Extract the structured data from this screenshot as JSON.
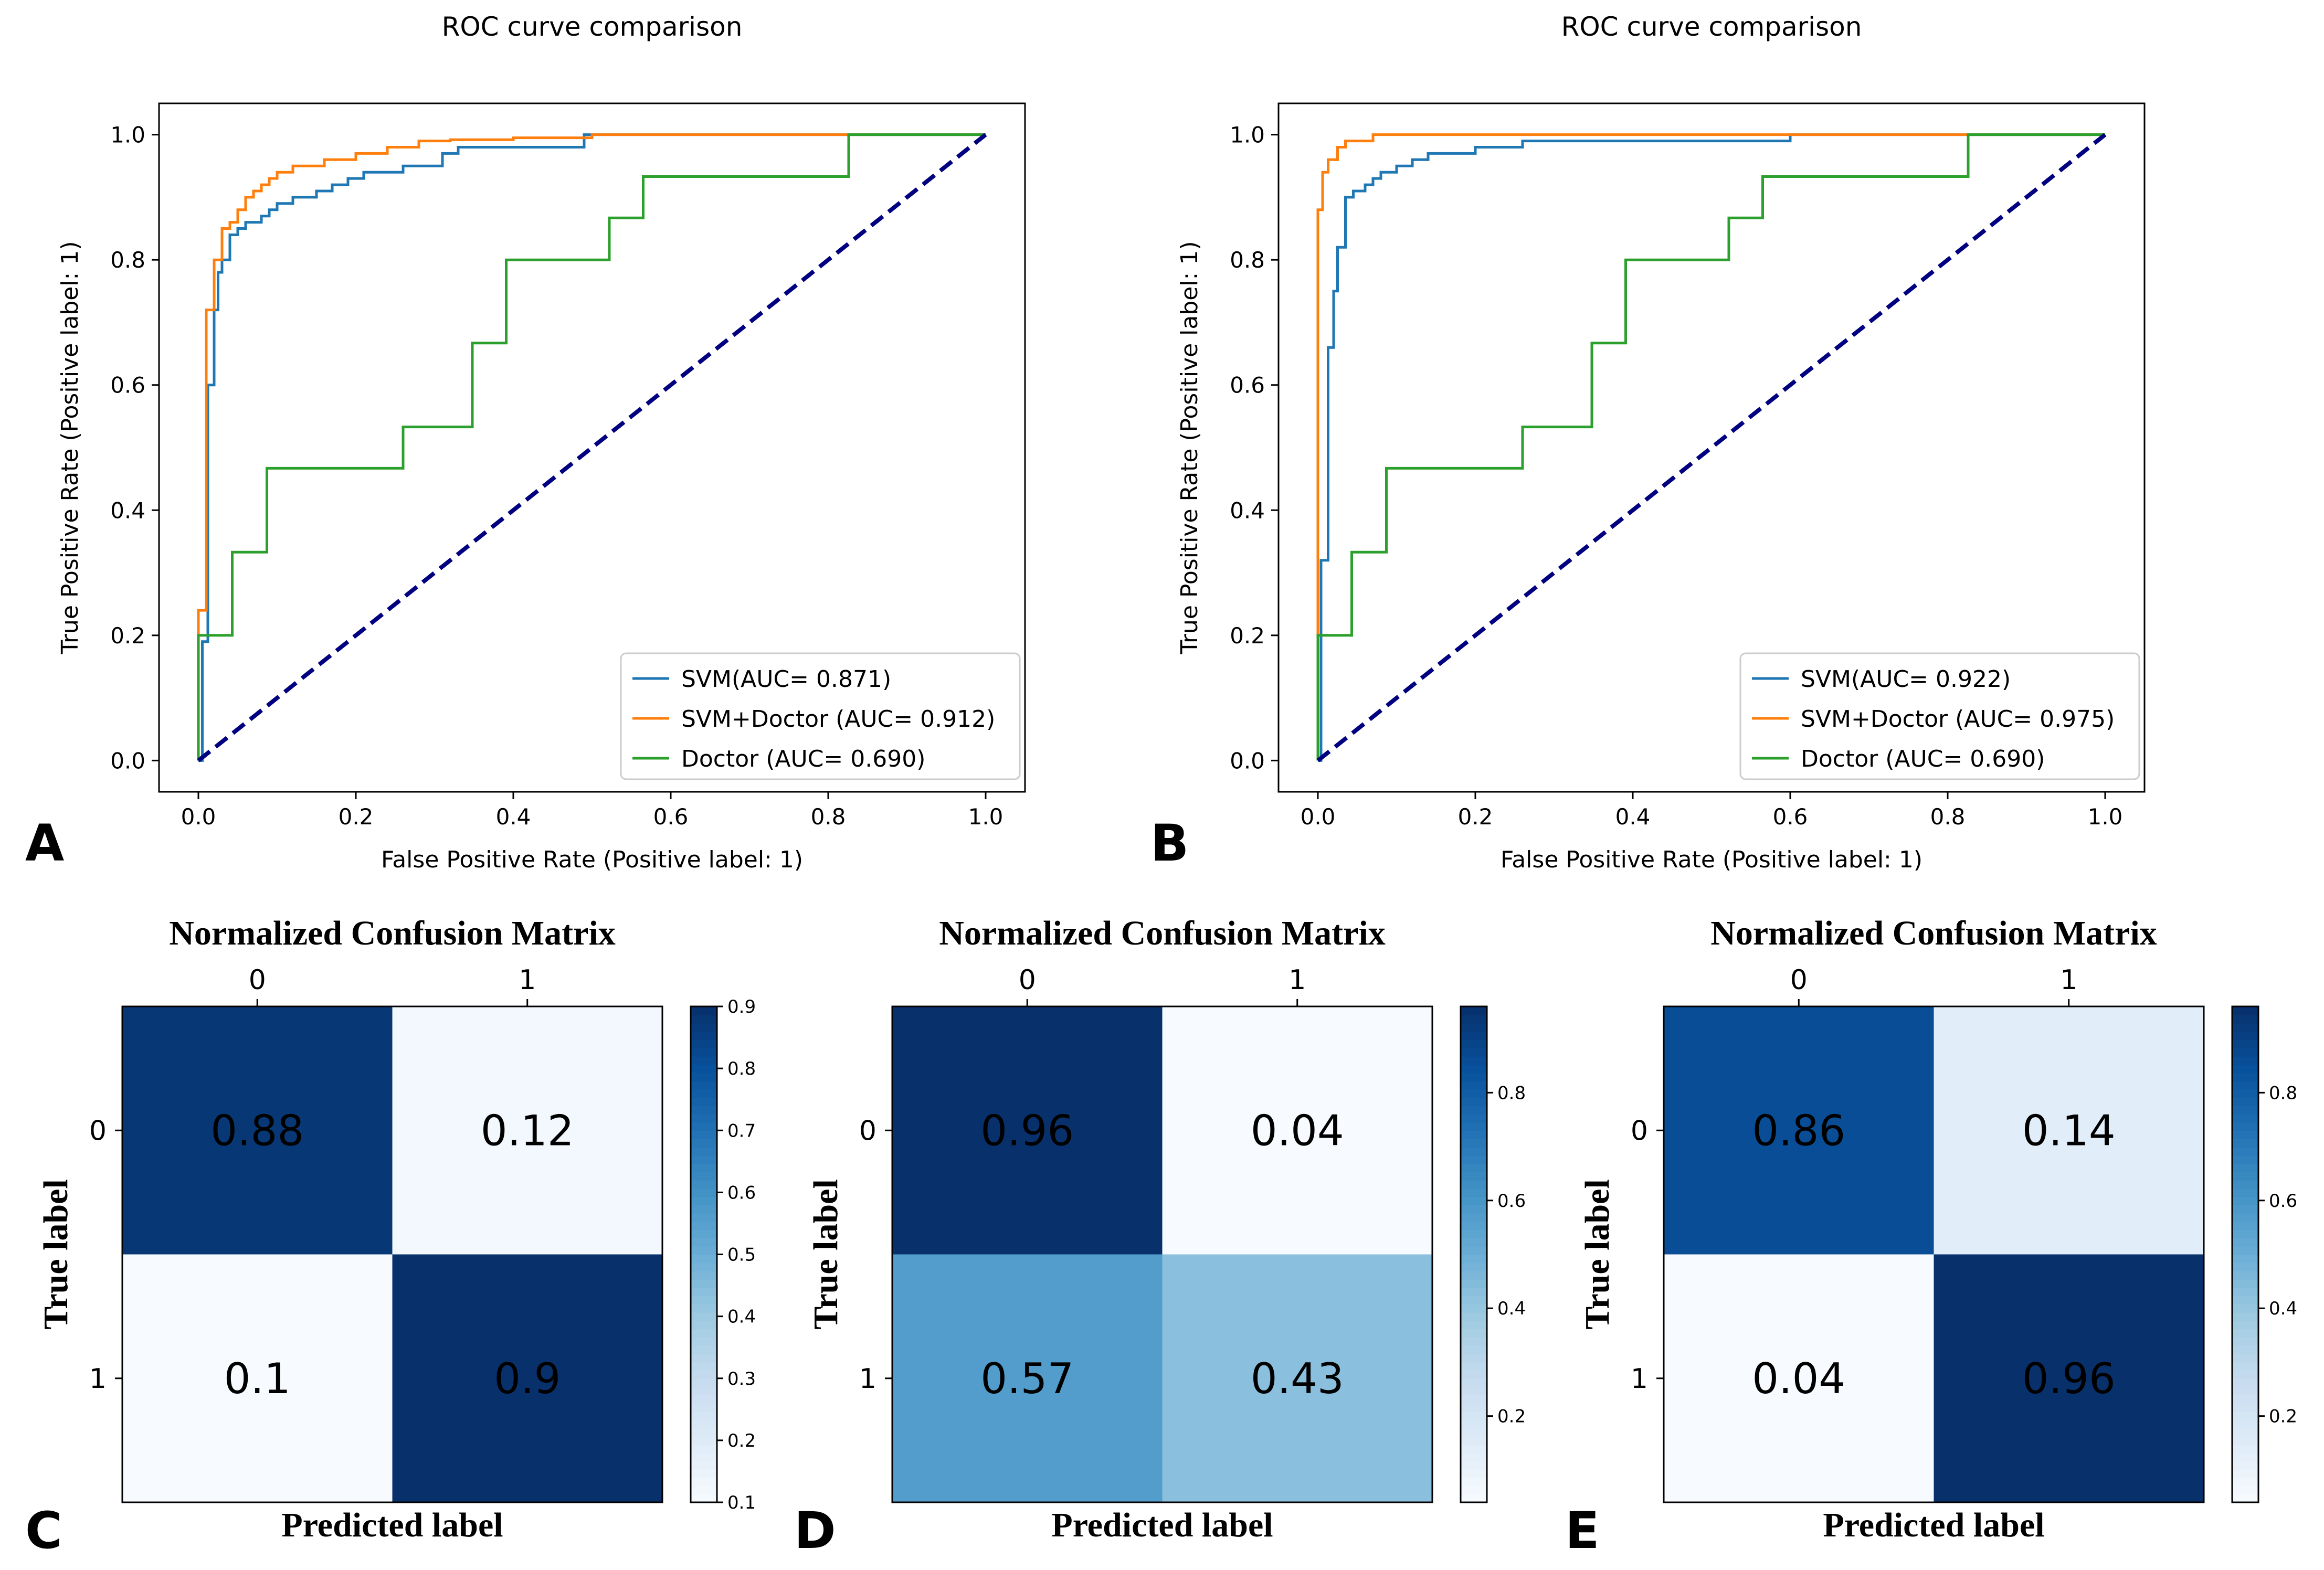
{
  "panel_letters": [
    "A",
    "B",
    "C",
    "D",
    "E"
  ],
  "chart_data": [
    {
      "type": "line",
      "panel": "A",
      "title": "ROC curve comparison",
      "xlabel": "False Positive Rate (Positive label: 1)",
      "ylabel": "True Positive Rate (Positive label: 1)",
      "xlim": [
        -0.05,
        1.05
      ],
      "ylim": [
        -0.05,
        1.05
      ],
      "xticks": [
        "0.0",
        "0.2",
        "0.4",
        "0.6",
        "0.8",
        "1.0"
      ],
      "yticks": [
        "0.0",
        "0.2",
        "0.4",
        "0.6",
        "0.8",
        "1.0"
      ],
      "legend_position": "lower-right",
      "series": [
        {
          "name": "SVM(AUC= 0.871)",
          "color": "#1f77b4",
          "x": [
            0,
            0.005,
            0.005,
            0.012,
            0.012,
            0.02,
            0.02,
            0.025,
            0.025,
            0.03,
            0.03,
            0.04,
            0.04,
            0.05,
            0.05,
            0.06,
            0.06,
            0.08,
            0.08,
            0.09,
            0.09,
            0.1,
            0.1,
            0.12,
            0.12,
            0.15,
            0.15,
            0.17,
            0.17,
            0.19,
            0.19,
            0.21,
            0.21,
            0.26,
            0.26,
            0.31,
            0.31,
            0.33,
            0.33,
            0.49,
            0.49,
            1.0
          ],
          "y": [
            0,
            0,
            0.19,
            0.19,
            0.6,
            0.6,
            0.72,
            0.72,
            0.78,
            0.78,
            0.8,
            0.8,
            0.84,
            0.84,
            0.85,
            0.85,
            0.86,
            0.86,
            0.87,
            0.87,
            0.88,
            0.88,
            0.89,
            0.89,
            0.9,
            0.9,
            0.91,
            0.91,
            0.92,
            0.92,
            0.93,
            0.93,
            0.94,
            0.94,
            0.95,
            0.95,
            0.97,
            0.97,
            0.98,
            0.98,
            1.0,
            1.0
          ]
        },
        {
          "name": "SVM+Doctor (AUC= 0.912)",
          "color": "#ff7f0e",
          "x": [
            0,
            0,
            0.01,
            0.01,
            0.02,
            0.02,
            0.03,
            0.03,
            0.04,
            0.04,
            0.05,
            0.05,
            0.06,
            0.06,
            0.07,
            0.07,
            0.08,
            0.08,
            0.09,
            0.09,
            0.1,
            0.1,
            0.12,
            0.12,
            0.16,
            0.16,
            0.2,
            0.2,
            0.24,
            0.24,
            0.28,
            0.28,
            0.32,
            0.32,
            0.4,
            0.4,
            0.5,
            0.5,
            1.0
          ],
          "y": [
            0,
            0.24,
            0.24,
            0.72,
            0.72,
            0.8,
            0.8,
            0.85,
            0.85,
            0.86,
            0.86,
            0.88,
            0.88,
            0.9,
            0.9,
            0.91,
            0.91,
            0.92,
            0.92,
            0.93,
            0.93,
            0.94,
            0.94,
            0.95,
            0.95,
            0.96,
            0.96,
            0.97,
            0.97,
            0.98,
            0.98,
            0.99,
            0.99,
            0.992,
            0.992,
            0.995,
            0.995,
            1.0,
            1.0
          ]
        },
        {
          "name": "Doctor (AUC= 0.690)",
          "color": "#2ca02c",
          "x": [
            0,
            0,
            0.043,
            0.043,
            0.087,
            0.087,
            0.26,
            0.26,
            0.348,
            0.348,
            0.391,
            0.391,
            0.522,
            0.522,
            0.565,
            0.565,
            0.826,
            0.826,
            1.0
          ],
          "y": [
            0,
            0.2,
            0.2,
            0.333,
            0.333,
            0.467,
            0.467,
            0.533,
            0.533,
            0.667,
            0.667,
            0.8,
            0.8,
            0.867,
            0.867,
            0.933,
            0.933,
            1.0,
            1.0
          ]
        },
        {
          "name": "",
          "color": "#000080",
          "dashed": true,
          "x": [
            0,
            1
          ],
          "y": [
            0,
            1
          ]
        }
      ]
    },
    {
      "type": "line",
      "panel": "B",
      "title": "ROC curve comparison",
      "xlabel": "False Positive Rate (Positive label: 1)",
      "ylabel": "True Positive Rate (Positive label: 1)",
      "xlim": [
        -0.05,
        1.05
      ],
      "ylim": [
        -0.05,
        1.05
      ],
      "xticks": [
        "0.0",
        "0.2",
        "0.4",
        "0.6",
        "0.8",
        "1.0"
      ],
      "yticks": [
        "0.0",
        "0.2",
        "0.4",
        "0.6",
        "0.8",
        "1.0"
      ],
      "legend_position": "lower-right",
      "series": [
        {
          "name": "SVM(AUC= 0.922)",
          "color": "#1f77b4",
          "x": [
            0,
            0.004,
            0.004,
            0.013,
            0.013,
            0.02,
            0.02,
            0.025,
            0.025,
            0.035,
            0.035,
            0.045,
            0.045,
            0.06,
            0.06,
            0.07,
            0.07,
            0.08,
            0.08,
            0.1,
            0.1,
            0.12,
            0.12,
            0.14,
            0.14,
            0.2,
            0.2,
            0.26,
            0.26,
            0.6,
            0.6,
            1.0
          ],
          "y": [
            0,
            0,
            0.32,
            0.32,
            0.66,
            0.66,
            0.75,
            0.75,
            0.82,
            0.82,
            0.9,
            0.9,
            0.91,
            0.91,
            0.92,
            0.92,
            0.93,
            0.93,
            0.94,
            0.94,
            0.95,
            0.95,
            0.96,
            0.96,
            0.97,
            0.97,
            0.98,
            0.98,
            0.99,
            0.99,
            1.0,
            1.0
          ]
        },
        {
          "name": "SVM+Doctor (AUC= 0.975)",
          "color": "#ff7f0e",
          "x": [
            0,
            0,
            0.006,
            0.006,
            0.013,
            0.013,
            0.025,
            0.025,
            0.035,
            0.035,
            0.07,
            0.07,
            1.0
          ],
          "y": [
            0,
            0.88,
            0.88,
            0.94,
            0.94,
            0.96,
            0.96,
            0.98,
            0.98,
            0.99,
            0.99,
            1.0,
            1.0
          ]
        },
        {
          "name": "Doctor (AUC= 0.690)",
          "color": "#2ca02c",
          "x": [
            0,
            0,
            0.043,
            0.043,
            0.087,
            0.087,
            0.26,
            0.26,
            0.348,
            0.348,
            0.391,
            0.391,
            0.522,
            0.522,
            0.565,
            0.565,
            0.826,
            0.826,
            1.0
          ],
          "y": [
            0,
            0.2,
            0.2,
            0.333,
            0.333,
            0.467,
            0.467,
            0.533,
            0.533,
            0.667,
            0.667,
            0.8,
            0.8,
            0.867,
            0.867,
            0.933,
            0.933,
            1.0,
            1.0
          ]
        },
        {
          "name": "",
          "color": "#000080",
          "dashed": true,
          "x": [
            0,
            1
          ],
          "y": [
            0,
            1
          ]
        }
      ]
    },
    {
      "type": "heatmap",
      "panel": "C",
      "title": "Normalized Confusion Matrix",
      "xlabel": "Predicted label",
      "ylabel": "True label",
      "x_categories": [
        "0",
        "1"
      ],
      "y_categories": [
        "0",
        "1"
      ],
      "values": [
        [
          0.88,
          0.12
        ],
        [
          0.1,
          0.9
        ]
      ],
      "cell_text": [
        [
          "0.88",
          "0.12"
        ],
        [
          "0.1",
          "0.9"
        ]
      ],
      "colorbar_range": [
        0.1,
        0.9
      ],
      "colorbar_ticks": [
        "0.1",
        "0.2",
        "0.3",
        "0.4",
        "0.5",
        "0.6",
        "0.7",
        "0.8",
        "0.9"
      ],
      "colormap": "Blues"
    },
    {
      "type": "heatmap",
      "panel": "D",
      "title": "Normalized Confusion Matrix",
      "xlabel": "Predicted label",
      "ylabel": "True label",
      "x_categories": [
        "0",
        "1"
      ],
      "y_categories": [
        "0",
        "1"
      ],
      "values": [
        [
          0.96,
          0.04
        ],
        [
          0.57,
          0.43
        ]
      ],
      "cell_text": [
        [
          "0.96",
          "0.04"
        ],
        [
          "0.57",
          "0.43"
        ]
      ],
      "colorbar_range": [
        0.04,
        0.96
      ],
      "colorbar_ticks": [
        "0.2",
        "0.4",
        "0.6",
        "0.8"
      ],
      "colormap": "Blues"
    },
    {
      "type": "heatmap",
      "panel": "E",
      "title": "Normalized Confusion Matrix",
      "xlabel": "Predicted label",
      "ylabel": "True label",
      "x_categories": [
        "0",
        "1"
      ],
      "y_categories": [
        "0",
        "1"
      ],
      "values": [
        [
          0.86,
          0.14
        ],
        [
          0.04,
          0.96
        ]
      ],
      "cell_text": [
        [
          "0.86",
          "0.14"
        ],
        [
          "0.04",
          "0.96"
        ]
      ],
      "colorbar_range": [
        0.04,
        0.96
      ],
      "colorbar_ticks": [
        "0.2",
        "0.4",
        "0.6",
        "0.8"
      ],
      "colormap": "Blues"
    }
  ]
}
